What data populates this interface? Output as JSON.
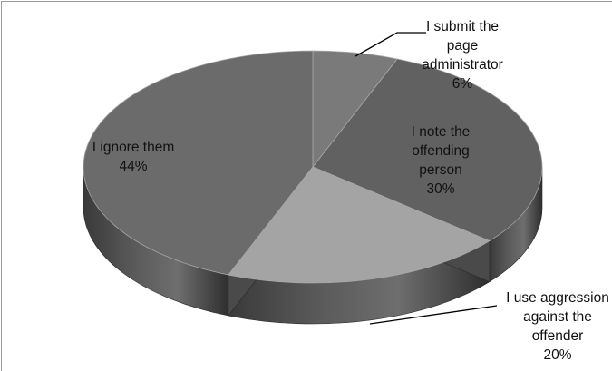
{
  "chart_data": {
    "type": "pie",
    "variant": "3d",
    "title": "",
    "slices": [
      {
        "label": [
          "I submit the",
          "page",
          "administrator"
        ],
        "value": 6,
        "value_label": "6%",
        "color": "#7a7a7a"
      },
      {
        "label": [
          "I note the",
          "offending",
          "person"
        ],
        "value": 30,
        "value_label": "30%",
        "color": "#616161"
      },
      {
        "label": [
          "I use aggression",
          "against the",
          "offender"
        ],
        "value": 20,
        "value_label": "20%",
        "color": "#a4a4a4"
      },
      {
        "label": [
          "I ignore them"
        ],
        "value": 44,
        "value_label": "44%",
        "color": "#6b6b6b"
      }
    ],
    "legend": "none",
    "data_labels": "category and percent"
  }
}
